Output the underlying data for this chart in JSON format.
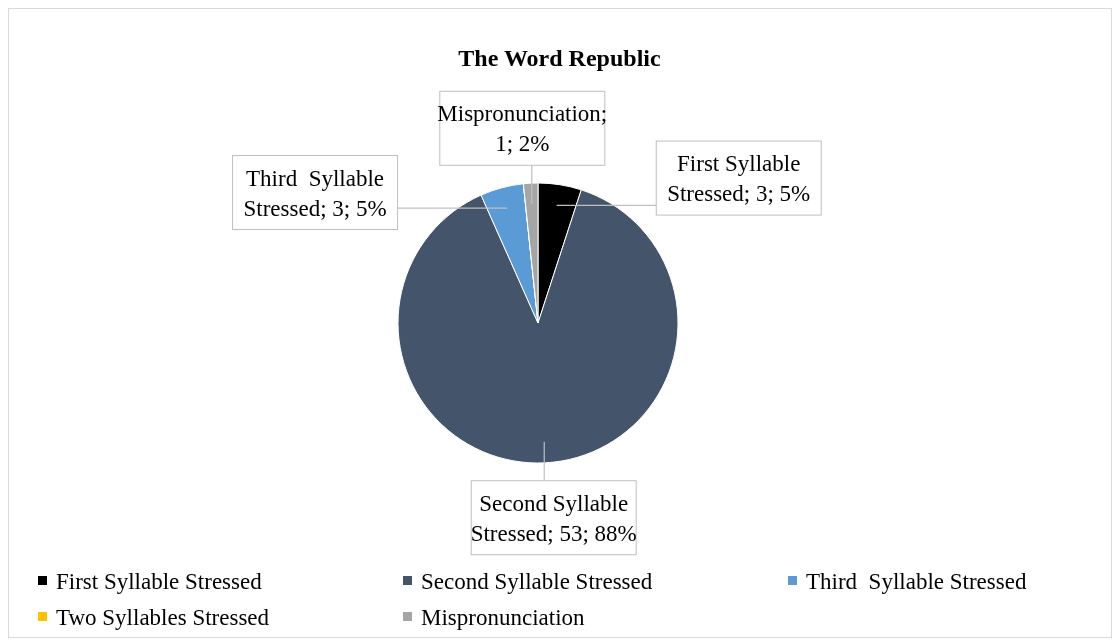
{
  "chart_data": {
    "type": "pie",
    "title": "The Word Republic",
    "categories": [
      "First Syllable Stressed",
      "Second Syllable Stressed",
      "Third  Syllable Stressed",
      "Two Syllables Stressed",
      "Mispronunciation"
    ],
    "values": [
      3,
      53,
      3,
      0,
      1
    ],
    "colors": [
      "#000000",
      "#44546a",
      "#5b9bd5",
      "#ffc000",
      "#a5a5a5"
    ],
    "value_labels": [
      "First Syllable Stressed; 3; 5%",
      "Second Syllable Stressed; 53; 88%",
      "Third  Syllable Stressed; 3; 5%",
      null,
      "Mispronunciation; 1; 2%"
    ],
    "legend": "bottom"
  }
}
